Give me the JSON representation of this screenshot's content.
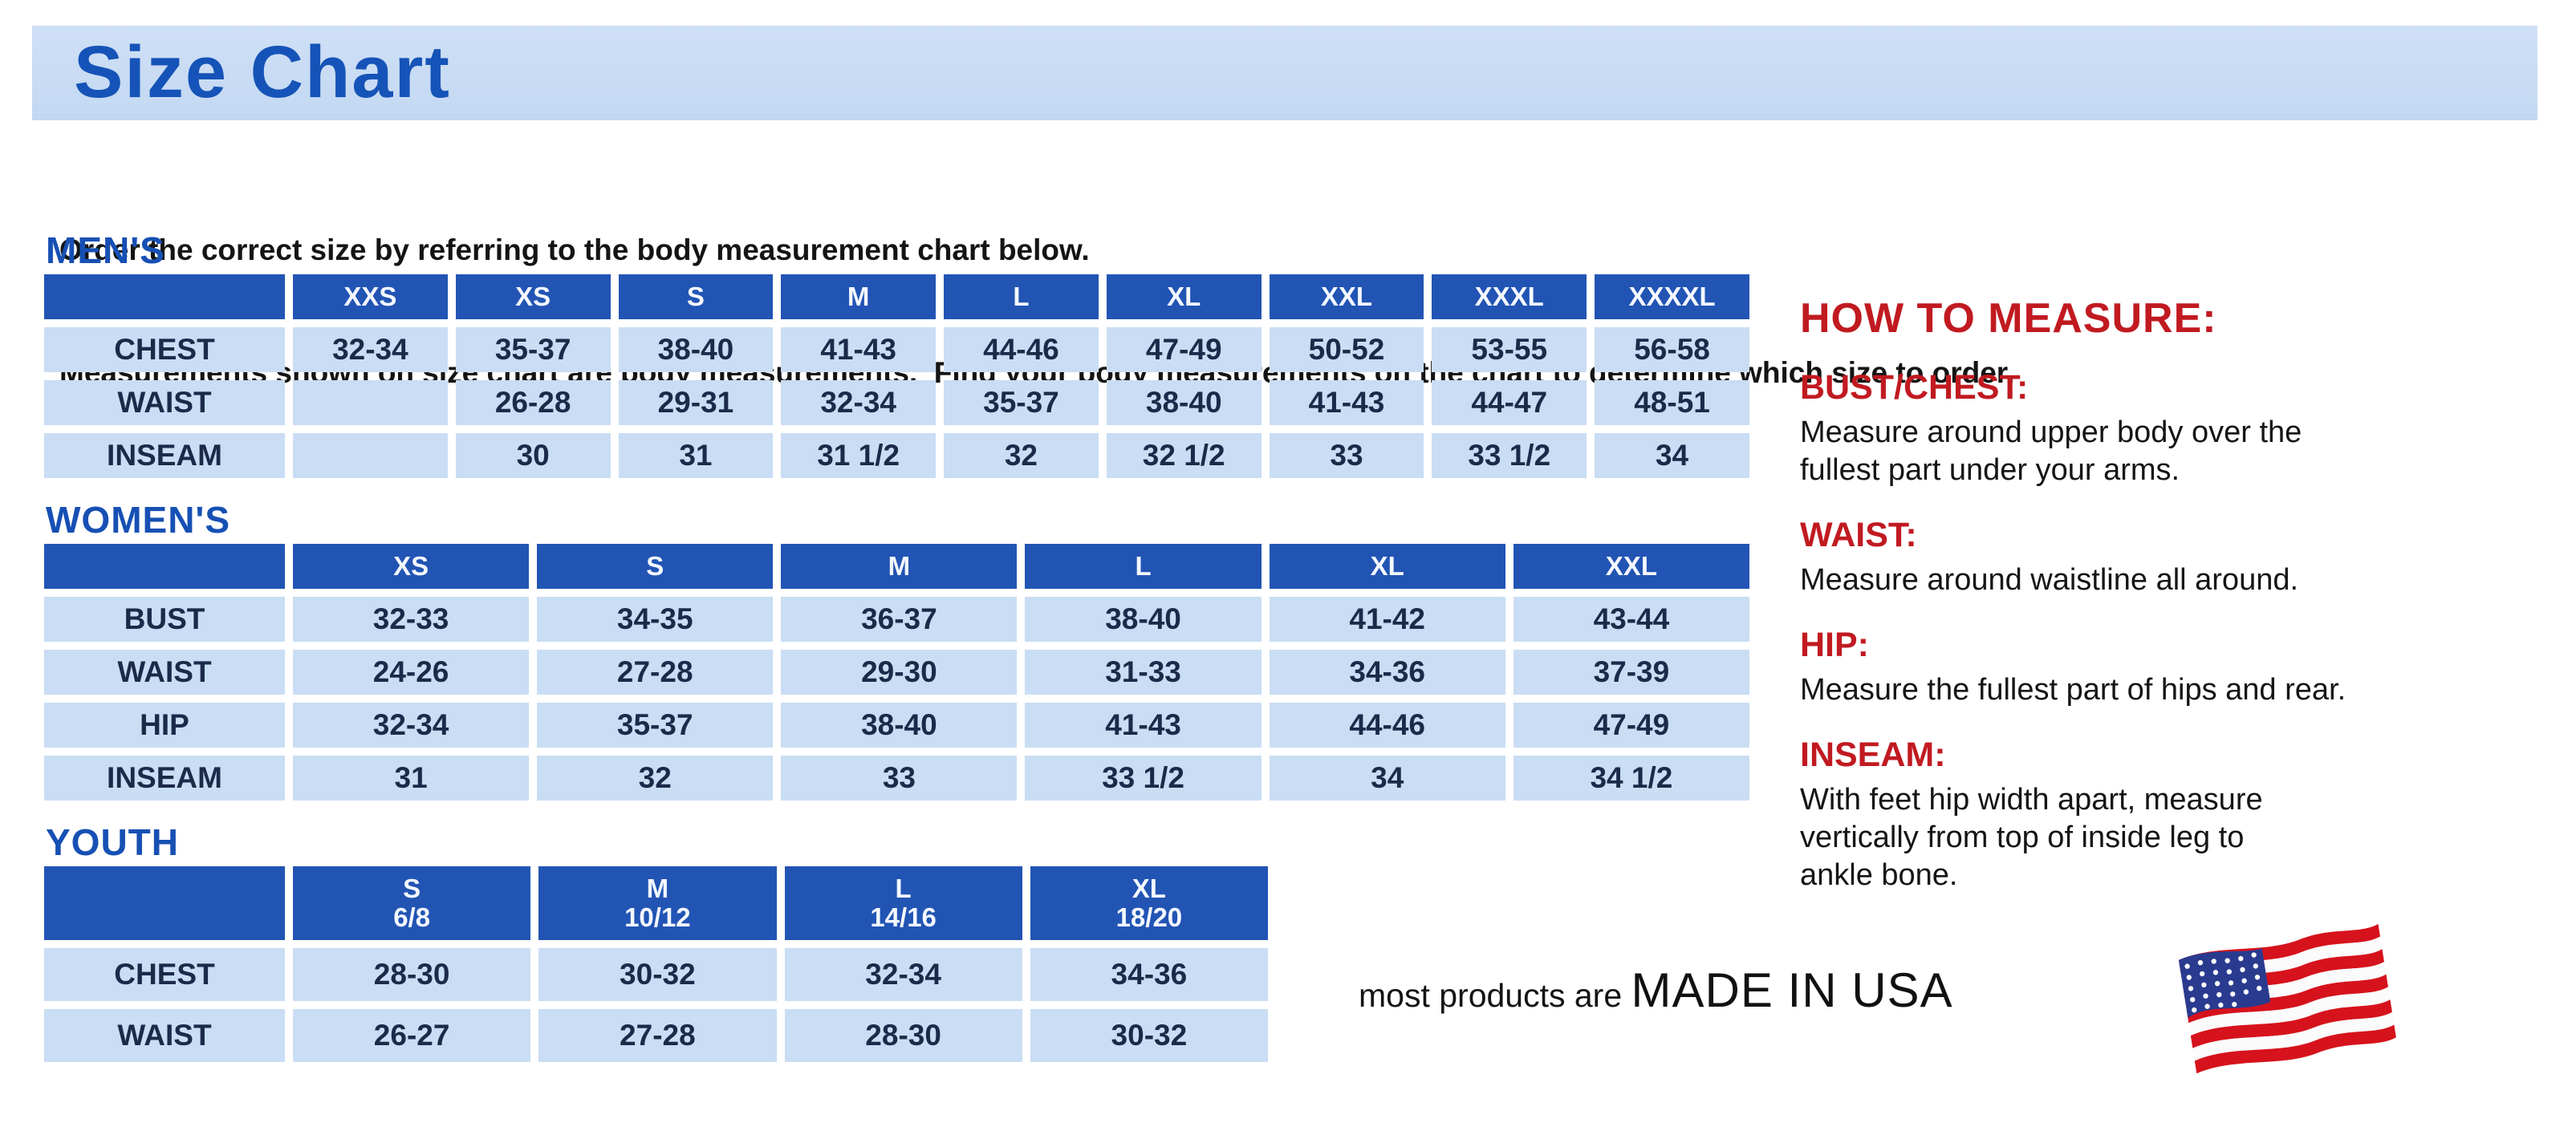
{
  "page": {
    "title": "Size Chart",
    "intro_line1": "Order the correct size by referring to the body measurement chart below.",
    "intro_line2": "Measurements shown on size chart are body measurements.  Find your body measurements on the chart to determine which size to order."
  },
  "colors": {
    "banner_blue": "#c5daf3",
    "title_blue": "#1553b8",
    "heading_blue": "#1750b4",
    "header_cell_blue": "#2254b4",
    "cell_light_blue": "#c9ddf4",
    "cell_text_navy": "#1c2a4a",
    "accent_red": "#c11a21",
    "flag_red": "#d6121c",
    "flag_navy": "#2a3b8f"
  },
  "tables": {
    "mens": {
      "section_label": "MEN'S",
      "columns": [
        "XXS",
        "XS",
        "S",
        "M",
        "L",
        "XL",
        "XXL",
        "XXXL",
        "XXXXL"
      ],
      "rows": [
        {
          "label": "CHEST",
          "values": [
            "32-34",
            "35-37",
            "38-40",
            "41-43",
            "44-46",
            "47-49",
            "50-52",
            "53-55",
            "56-58"
          ]
        },
        {
          "label": "WAIST",
          "values": [
            "",
            "26-28",
            "29-31",
            "32-34",
            "35-37",
            "38-40",
            "41-43",
            "44-47",
            "48-51"
          ]
        },
        {
          "label": "INSEAM",
          "values": [
            "",
            "30",
            "31",
            "31 1/2",
            "32",
            "32 1/2",
            "33",
            "33 1/2",
            "34"
          ]
        }
      ]
    },
    "womens": {
      "section_label": "WOMEN'S",
      "columns": [
        "XS",
        "S",
        "M",
        "L",
        "XL",
        "XXL"
      ],
      "rows": [
        {
          "label": "BUST",
          "values": [
            "32-33",
            "34-35",
            "36-37",
            "38-40",
            "41-42",
            "43-44"
          ]
        },
        {
          "label": "WAIST",
          "values": [
            "24-26",
            "27-28",
            "29-30",
            "31-33",
            "34-36",
            "37-39"
          ]
        },
        {
          "label": "HIP",
          "values": [
            "32-34",
            "35-37",
            "38-40",
            "41-43",
            "44-46",
            "47-49"
          ]
        },
        {
          "label": "INSEAM",
          "values": [
            "31",
            "32",
            "33",
            "33 1/2",
            "34",
            "34 1/2"
          ]
        }
      ]
    },
    "youth": {
      "section_label": "YOUTH",
      "columns": [
        {
          "size": "S",
          "range": "6/8"
        },
        {
          "size": "M",
          "range": "10/12"
        },
        {
          "size": "L",
          "range": "14/16"
        },
        {
          "size": "XL",
          "range": "18/20"
        }
      ],
      "rows": [
        {
          "label": "CHEST",
          "values": [
            "28-30",
            "30-32",
            "32-34",
            "34-36"
          ]
        },
        {
          "label": "WAIST",
          "values": [
            "26-27",
            "27-28",
            "28-30",
            "30-32"
          ]
        }
      ]
    }
  },
  "how_to_measure": {
    "title": "HOW TO MEASURE:",
    "items": [
      {
        "label": "BUST/CHEST:",
        "text": "Measure around upper body over the\nfullest part under your arms."
      },
      {
        "label": "WAIST:",
        "text": "Measure around waistline all around."
      },
      {
        "label": "HIP:",
        "text": "Measure the fullest part of hips and rear."
      },
      {
        "label": "INSEAM:",
        "text": "With feet hip width apart, measure\nvertically from top of inside leg to\nankle bone."
      }
    ]
  },
  "footer": {
    "prefix": "most products are ",
    "made_in": "MADE IN USA",
    "flag_icon": "us-flag-icon"
  }
}
